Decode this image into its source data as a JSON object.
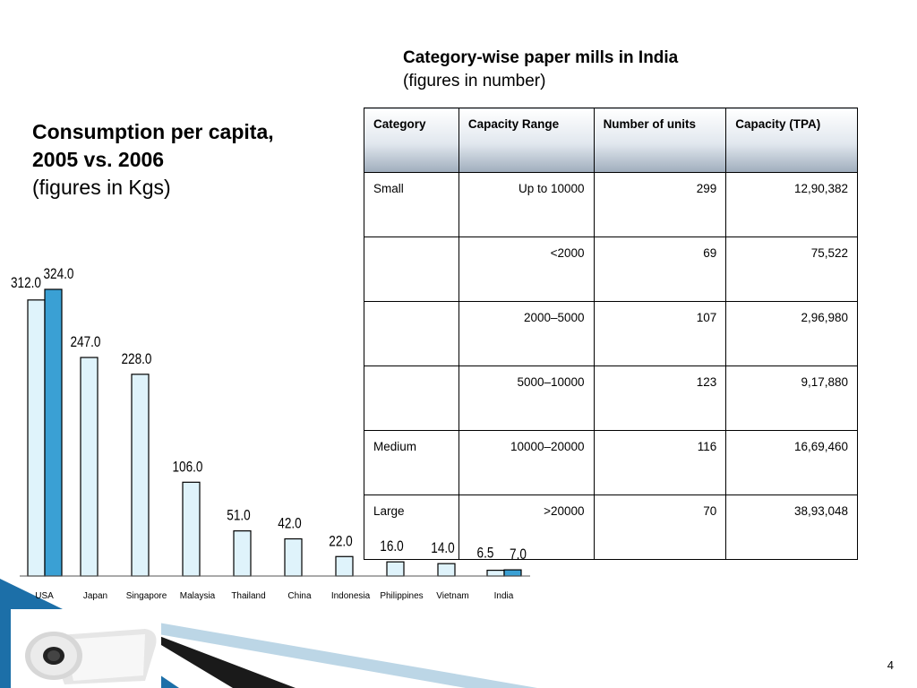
{
  "left_heading": {
    "line1": "Consumption per capita,",
    "line2": "2005 vs. 2006",
    "sub": "(figures in Kgs)"
  },
  "right_heading": {
    "title": "Category-wise paper mills in India",
    "sub": "(figures in number)"
  },
  "table": {
    "headers": [
      "Category",
      "Capacity Range",
      "Number of units",
      "Capacity (TPA)"
    ],
    "rows": [
      [
        "Small",
        "Up to 10000",
        "299",
        "12,90,382"
      ],
      [
        "",
        "<2000",
        "69",
        "75,522"
      ],
      [
        "",
        "2000–5000",
        "107",
        "2,96,980"
      ],
      [
        "",
        "5000–10000",
        "123",
        "9,17,880"
      ],
      [
        "Medium",
        "10000–20000",
        "116",
        "16,69,460"
      ],
      [
        "Large",
        ">20000",
        "70",
        "38,93,048"
      ]
    ]
  },
  "chart_data": {
    "type": "bar",
    "categories": [
      "USA",
      "Japan",
      "Singapore",
      "Malaysia",
      "Thailand",
      "China",
      "Indonesia",
      "Philippines",
      "Vietnam",
      "India"
    ],
    "series": [
      {
        "values": [
          312.0,
          247.0,
          228.0,
          106.0,
          51.0,
          42.0,
          22.0,
          16.0,
          14.0,
          6.5
        ],
        "color": "#dff3fb"
      },
      {
        "values": [
          324.0,
          null,
          null,
          null,
          null,
          null,
          null,
          null,
          null,
          7.0
        ],
        "color": "#3aa0d4"
      }
    ],
    "data_labels": [
      [
        "312.0",
        "247.0",
        "228.0",
        "106.0",
        "51.0",
        "42.0",
        "22.0",
        "16.0",
        "14.0",
        "6.5"
      ],
      [
        "324.0",
        null,
        null,
        null,
        null,
        null,
        null,
        null,
        null,
        "7.0"
      ]
    ],
    "ylim": [
      0,
      324
    ],
    "title": "",
    "xlabel": "",
    "ylabel": "",
    "grid": false
  },
  "page_number": "4",
  "colors": {
    "table_header_shade": "#9fadbc",
    "bar_light": "#dff3fb",
    "bar_dark": "#3aa0d4",
    "accent_blue": "#1c6fa8"
  }
}
